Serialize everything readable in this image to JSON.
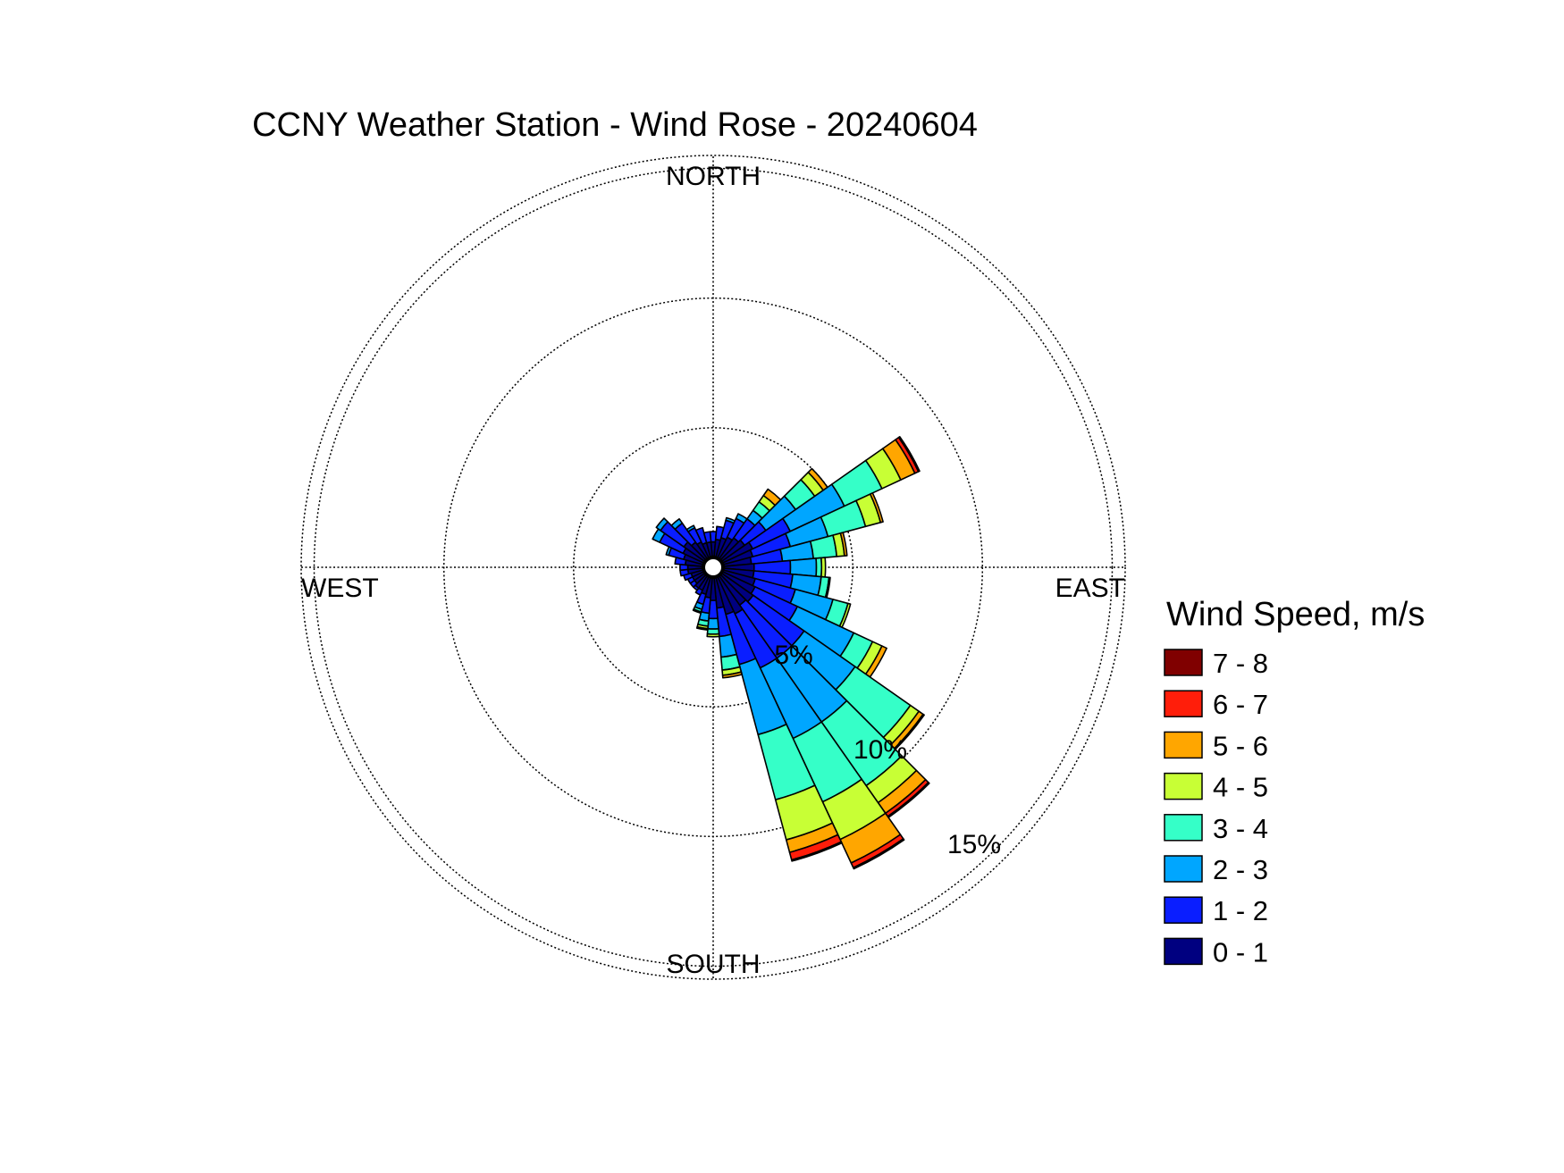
{
  "chart_data": {
    "type": "wind-rose",
    "title": "CCNY Weather Station - Wind Rose - 20240604",
    "direction_labels": {
      "north": "NORTH",
      "east": "EAST",
      "south": "SOUTH",
      "west": "WEST"
    },
    "radial_axis": {
      "unit": "%",
      "ticks": [
        5,
        10,
        15
      ],
      "tick_labels": [
        "5%",
        "10%",
        "15%"
      ],
      "max": 15.5
    },
    "grid": true,
    "legend": {
      "title": "Wind Speed, m/s",
      "placement": "right"
    },
    "speed_bins": [
      {
        "label": "0 - 1",
        "color": "#000080"
      },
      {
        "label": "1 - 2",
        "color": "#0a1eff"
      },
      {
        "label": "2 - 3",
        "color": "#00a6ff"
      },
      {
        "label": "3 - 4",
        "color": "#35ffc8"
      },
      {
        "label": "4 - 5",
        "color": "#c8ff35"
      },
      {
        "label": "5 - 6",
        "color": "#ffa600"
      },
      {
        "label": "6 - 7",
        "color": "#ff1e0a"
      },
      {
        "label": "7 - 8",
        "color": "#800000"
      }
    ],
    "sector_width_deg": 10,
    "sectors": [
      {
        "dir": 0,
        "values": [
          0.6,
          0.4,
          0,
          0,
          0,
          0,
          0,
          0
        ]
      },
      {
        "dir": 10,
        "values": [
          0.7,
          0.5,
          0,
          0,
          0,
          0,
          0,
          0
        ]
      },
      {
        "dir": 20,
        "values": [
          0.8,
          0.7,
          0.1,
          0,
          0,
          0,
          0,
          0
        ]
      },
      {
        "dir": 30,
        "values": [
          0.9,
          0.8,
          0.2,
          0,
          0,
          0,
          0,
          0
        ]
      },
      {
        "dir": 40,
        "values": [
          1.0,
          0.9,
          0.4,
          0.4,
          0.3,
          0.3,
          0,
          0
        ]
      },
      {
        "dir": 50,
        "values": [
          1.1,
          1.0,
          1.4,
          0.9,
          0.4,
          0.2,
          0,
          0
        ]
      },
      {
        "dir": 60,
        "values": [
          1.3,
          1.6,
          2.3,
          1.6,
          0.8,
          0.6,
          0.15,
          0.05
        ]
      },
      {
        "dir": 70,
        "values": [
          1.2,
          1.5,
          1.5,
          1.5,
          0.6,
          0.1,
          0,
          0
        ]
      },
      {
        "dir": 80,
        "values": [
          1.1,
          1.2,
          1.2,
          0.9,
          0.3,
          0.1,
          0,
          0
        ]
      },
      {
        "dir": 90,
        "values": [
          1.2,
          1.4,
          1.0,
          0.2,
          0.15,
          0,
          0,
          0
        ]
      },
      {
        "dir": 100,
        "values": [
          1.2,
          1.5,
          1.1,
          0.3,
          0.05,
          0,
          0,
          0
        ]
      },
      {
        "dir": 110,
        "values": [
          1.3,
          1.6,
          1.5,
          0.6,
          0.1,
          0,
          0,
          0
        ]
      },
      {
        "dir": 120,
        "values": [
          1.4,
          1.8,
          2.4,
          0.8,
          0.4,
          0.2,
          0,
          0
        ]
      },
      {
        "dir": 130,
        "values": [
          1.5,
          2.4,
          2.4,
          2.6,
          0.4,
          0.2,
          0.05,
          0
        ]
      },
      {
        "dir": 140,
        "values": [
          1.4,
          2.5,
          3.0,
          3.0,
          0.8,
          0.5,
          0.15,
          0.05
        ]
      },
      {
        "dir": 150,
        "values": [
          1.6,
          2.3,
          3.0,
          2.7,
          1.6,
          1.0,
          0.2,
          0.05
        ]
      },
      {
        "dir": 160,
        "values": [
          1.5,
          2.0,
          2.8,
          2.6,
          1.6,
          0.5,
          0.3,
          0.05
        ]
      },
      {
        "dir": 170,
        "values": [
          1.2,
          1.1,
          0.8,
          0.5,
          0.2,
          0.1,
          0,
          0
        ]
      },
      {
        "dir": 180,
        "values": [
          0.9,
          0.7,
          0.4,
          0.2,
          0.1,
          0,
          0,
          0
        ]
      },
      {
        "dir": 190,
        "values": [
          0.8,
          0.6,
          0.3,
          0.2,
          0.1,
          0.05,
          0,
          0
        ]
      },
      {
        "dir": 200,
        "values": [
          0.7,
          0.4,
          0.2,
          0.1,
          0.05,
          0,
          0,
          0
        ]
      },
      {
        "dir": 210,
        "values": [
          0.6,
          0.2,
          0,
          0,
          0,
          0,
          0,
          0
        ]
      },
      {
        "dir": 220,
        "values": [
          0.6,
          0.1,
          0,
          0,
          0,
          0,
          0,
          0
        ]
      },
      {
        "dir": 230,
        "values": [
          0.5,
          0.2,
          0,
          0,
          0,
          0,
          0,
          0
        ]
      },
      {
        "dir": 240,
        "values": [
          0.5,
          0.2,
          0,
          0,
          0,
          0,
          0,
          0
        ]
      },
      {
        "dir": 250,
        "values": [
          0.5,
          0.3,
          0,
          0,
          0,
          0,
          0,
          0
        ]
      },
      {
        "dir": 260,
        "values": [
          0.6,
          0.3,
          0,
          0,
          0,
          0,
          0,
          0
        ]
      },
      {
        "dir": 270,
        "values": [
          0.6,
          0.3,
          0,
          0,
          0,
          0,
          0,
          0
        ]
      },
      {
        "dir": 280,
        "values": [
          0.7,
          0.4,
          0,
          0,
          0,
          0,
          0,
          0
        ]
      },
      {
        "dir": 290,
        "values": [
          0.8,
          0.6,
          0.1,
          0,
          0,
          0,
          0,
          0
        ]
      },
      {
        "dir": 300,
        "values": [
          0.9,
          1.0,
          0.3,
          0,
          0,
          0,
          0,
          0
        ]
      },
      {
        "dir": 310,
        "values": [
          1.0,
          1.1,
          0.2,
          0,
          0,
          0,
          0,
          0
        ]
      },
      {
        "dir": 320,
        "values": [
          0.8,
          0.9,
          0.2,
          0,
          0,
          0,
          0,
          0
        ]
      },
      {
        "dir": 330,
        "values": [
          0.7,
          0.6,
          0.1,
          0,
          0,
          0,
          0,
          0
        ]
      },
      {
        "dir": 340,
        "values": [
          0.6,
          0.6,
          0,
          0,
          0,
          0,
          0,
          0
        ]
      },
      {
        "dir": 350,
        "values": [
          0.6,
          0.4,
          0,
          0,
          0,
          0,
          0,
          0
        ]
      }
    ]
  }
}
